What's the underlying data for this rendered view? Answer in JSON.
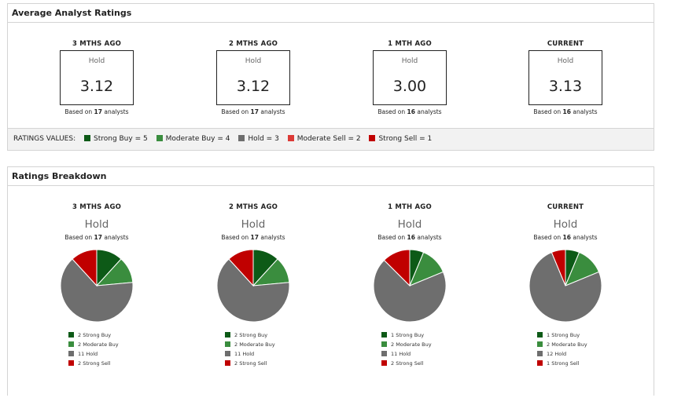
{
  "colors": {
    "strong_buy": "#0d5a17",
    "moderate_buy": "#3a8d3e",
    "hold": "#6e6e6e",
    "moderate_sell": "#dc3a36",
    "strong_sell": "#c00000"
  },
  "avg": {
    "title": "Average Analyst Ratings",
    "periods": [
      {
        "head": "3 MTHS AGO",
        "label": "Hold",
        "value": "3.12",
        "based_pre": "Based on",
        "count": "17",
        "based_post": "analysts"
      },
      {
        "head": "2 MTHS AGO",
        "label": "Hold",
        "value": "3.12",
        "based_pre": "Based on",
        "count": "17",
        "based_post": "analysts"
      },
      {
        "head": "1 MTH AGO",
        "label": "Hold",
        "value": "3.00",
        "based_pre": "Based on",
        "count": "16",
        "based_post": "analysts"
      },
      {
        "head": "CURRENT",
        "label": "Hold",
        "value": "3.13",
        "based_pre": "Based on",
        "count": "16",
        "based_post": "analysts"
      }
    ],
    "ratings_values_label": "RATINGS VALUES:",
    "ratings_values": [
      {
        "text": "Strong Buy = 5",
        "key": "strong_buy"
      },
      {
        "text": "Moderate Buy = 4",
        "key": "moderate_buy"
      },
      {
        "text": "Hold = 3",
        "key": "hold"
      },
      {
        "text": "Moderate Sell = 2",
        "key": "moderate_sell"
      },
      {
        "text": "Strong Sell = 1",
        "key": "strong_sell"
      }
    ]
  },
  "breakdown": {
    "title": "Ratings Breakdown",
    "periods": [
      {
        "head": "3 MTHS AGO",
        "label": "Hold",
        "based_pre": "Based on",
        "count": "17",
        "based_post": "analysts",
        "legend": [
          "2 Strong Buy",
          "2 Moderate Buy",
          "11 Hold",
          "2 Strong Sell"
        ]
      },
      {
        "head": "2 MTHS AGO",
        "label": "Hold",
        "based_pre": "Based on",
        "count": "17",
        "based_post": "analysts",
        "legend": [
          "2 Strong Buy",
          "2 Moderate Buy",
          "11 Hold",
          "2 Strong Sell"
        ]
      },
      {
        "head": "1 MTH AGO",
        "label": "Hold",
        "based_pre": "Based on",
        "count": "16",
        "based_post": "analysts",
        "legend": [
          "1 Strong Buy",
          "2 Moderate Buy",
          "11 Hold",
          "2 Strong Sell"
        ]
      },
      {
        "head": "CURRENT",
        "label": "Hold",
        "based_pre": "Based on",
        "count": "16",
        "based_post": "analysts",
        "legend": [
          "1 Strong Buy",
          "2 Moderate Buy",
          "12 Hold",
          "1 Strong Sell"
        ]
      }
    ]
  },
  "chart_data": [
    {
      "type": "pie",
      "categories": [
        "Strong Buy",
        "Moderate Buy",
        "Hold",
        "Strong Sell"
      ],
      "values": [
        2,
        2,
        11,
        2
      ]
    },
    {
      "type": "pie",
      "categories": [
        "Strong Buy",
        "Moderate Buy",
        "Hold",
        "Strong Sell"
      ],
      "values": [
        2,
        2,
        11,
        2
      ]
    },
    {
      "type": "pie",
      "categories": [
        "Strong Buy",
        "Moderate Buy",
        "Hold",
        "Strong Sell"
      ],
      "values": [
        1,
        2,
        11,
        2
      ]
    },
    {
      "type": "pie",
      "categories": [
        "Strong Buy",
        "Moderate Buy",
        "Hold",
        "Strong Sell"
      ],
      "values": [
        1,
        2,
        12,
        1
      ]
    }
  ]
}
